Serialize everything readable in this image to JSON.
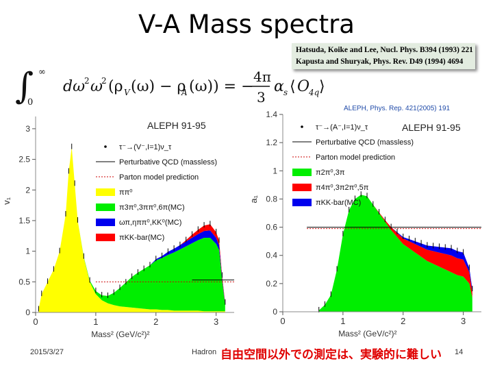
{
  "slide": {
    "title": "V-A Mass spectra",
    "references": [
      "Hatsuda, Koike and Lee, Nucl. Phys.  B394 (1993) 221",
      "Kapusta and Shuryak, Phys. Rev. D49 (1994) 4694"
    ],
    "formula_text": "∫₀^∞ dω² ω² (ρ_V(ω) − ρ_A(ω)) = −(4π/3) α_s ⟨O_4q⟩",
    "aleph_reference": "ALEPH, Phys. Rep. 421(2005) 191",
    "footer_date": "2015/3/27",
    "footer_label": "Hadron",
    "footer_note": "自由空間以外での測定は、実験的に難しい",
    "page_number": "14"
  },
  "chart_data": [
    {
      "type": "area",
      "title": "ALEPH 91-95",
      "xlabel": "Mass² (GeV/c²)²",
      "ylabel": "v₁",
      "xlim": [
        0,
        3.3
      ],
      "ylim": [
        0,
        3.2
      ],
      "xticks": [
        "0",
        "1",
        "2",
        "3"
      ],
      "yticks": [
        "0",
        "0.5",
        "1",
        "1.5",
        "2",
        "2.5",
        "3"
      ],
      "legend": [
        {
          "label": "τ⁻→(V⁻,I=1)ν_τ",
          "marker": "point"
        },
        {
          "label": "Perturbative QCD (massless)",
          "marker": "solid-line"
        },
        {
          "label": "Parton model prediction",
          "marker": "dashed-red-line"
        },
        {
          "label": "ππ⁰",
          "color": "#ffff00"
        },
        {
          "label": "π3π⁰,3ππ⁰,6π(MC)",
          "color": "#00ee00"
        },
        {
          "label": "ωπ,ηππ⁰,KK⁰(MC)",
          "color": "#0000ee"
        },
        {
          "label": "πKK-bar(MC)",
          "color": "#ff0000"
        }
      ],
      "x": [
        0.05,
        0.1,
        0.2,
        0.3,
        0.4,
        0.5,
        0.55,
        0.6,
        0.65,
        0.7,
        0.8,
        0.9,
        1.0,
        1.1,
        1.2,
        1.3,
        1.4,
        1.5,
        1.6,
        1.7,
        1.8,
        1.9,
        2.0,
        2.1,
        2.2,
        2.3,
        2.4,
        2.5,
        2.6,
        2.7,
        2.8,
        2.9,
        3.0,
        3.05,
        3.1,
        3.15
      ],
      "series": [
        {
          "name": "ππ⁰",
          "values": [
            0.05,
            0.3,
            0.5,
            0.7,
            1.0,
            1.6,
            2.3,
            2.7,
            2.1,
            1.5,
            0.9,
            0.5,
            0.3,
            0.2,
            0.15,
            0.12,
            0.1,
            0.09,
            0.08,
            0.07,
            0.06,
            0.05,
            0.05,
            0.04,
            0.04,
            0.03,
            0.03,
            0.03,
            0.03,
            0.03,
            0.02,
            0.02,
            0.02,
            0.02,
            0.02,
            0.02
          ]
        },
        {
          "name": "π3π⁰,3ππ⁰,6π(MC)",
          "values": [
            0,
            0,
            0,
            0,
            0,
            0,
            0,
            0,
            0,
            0,
            0.01,
            0.02,
            0.05,
            0.08,
            0.12,
            0.2,
            0.3,
            0.4,
            0.5,
            0.58,
            0.65,
            0.72,
            0.8,
            0.85,
            0.9,
            0.95,
            1.0,
            1.05,
            1.1,
            1.15,
            1.2,
            1.2,
            1.1,
            1.0,
            0.5,
            0.1
          ]
        },
        {
          "name": "ωπ,ηππ⁰,KK⁰(MC)",
          "values": [
            0,
            0,
            0,
            0,
            0,
            0,
            0,
            0,
            0,
            0,
            0,
            0,
            0,
            0,
            0,
            0,
            0,
            0,
            0,
            0,
            0,
            0,
            0.02,
            0.03,
            0.05,
            0.06,
            0.07,
            0.08,
            0.09,
            0.1,
            0.11,
            0.12,
            0.1,
            0.08,
            0.04,
            0.02
          ]
        },
        {
          "name": "πKK-bar(MC)",
          "values": [
            0,
            0,
            0,
            0,
            0,
            0,
            0,
            0,
            0,
            0,
            0,
            0,
            0,
            0,
            0,
            0,
            0,
            0,
            0,
            0,
            0,
            0,
            0,
            0,
            0,
            0,
            0,
            0.02,
            0.05,
            0.07,
            0.09,
            0.1,
            0.09,
            0.07,
            0.04,
            0.02
          ]
        }
      ],
      "reference_lines": [
        {
          "name": "Parton model prediction",
          "y": 0.5,
          "x_from": 1.0,
          "x_to": 3.3
        },
        {
          "name": "Perturbative QCD (massless)",
          "y": 0.53,
          "x_from": 2.6,
          "x_to": 3.3
        }
      ]
    },
    {
      "type": "area",
      "title": "ALEPH 91-95",
      "xlabel": "Mass² (GeV/c²)²",
      "ylabel": "a₁",
      "xlim": [
        0,
        3.3
      ],
      "ylim": [
        0,
        1.4
      ],
      "xticks": [
        "0",
        "1",
        "2",
        "3"
      ],
      "yticks": [
        "0",
        "0.2",
        "0.4",
        "0.6",
        "0.8",
        "1",
        "1.2",
        "1.4"
      ],
      "legend": [
        {
          "label": "τ⁻→(A⁻,I=1)ν_τ",
          "marker": "point"
        },
        {
          "label": "Perturbative QCD (massless)",
          "marker": "solid-line"
        },
        {
          "label": "Parton model prediction",
          "marker": "dashed-red-line"
        },
        {
          "label": "π2π⁰,3π",
          "color": "#00ee00"
        },
        {
          "label": "π4π⁰,3π2π⁰,5π",
          "color": "#ff0000"
        },
        {
          "label": "πKK-bar(MC)",
          "color": "#0000ee"
        }
      ],
      "x": [
        0.6,
        0.7,
        0.8,
        0.9,
        1.0,
        1.1,
        1.2,
        1.3,
        1.4,
        1.5,
        1.6,
        1.7,
        1.8,
        1.9,
        2.0,
        2.1,
        2.2,
        2.3,
        2.4,
        2.5,
        2.6,
        2.7,
        2.8,
        2.9,
        3.0,
        3.1,
        3.15
      ],
      "series": [
        {
          "name": "π2π⁰,3π",
          "values": [
            0.01,
            0.05,
            0.12,
            0.3,
            0.55,
            0.72,
            0.8,
            0.83,
            0.82,
            0.76,
            0.7,
            0.64,
            0.58,
            0.53,
            0.48,
            0.45,
            0.42,
            0.39,
            0.36,
            0.34,
            0.32,
            0.3,
            0.28,
            0.26,
            0.25,
            0.2,
            0.1
          ]
        },
        {
          "name": "π4π⁰,3π2π⁰,5π",
          "values": [
            0,
            0,
            0,
            0,
            0,
            0,
            0,
            0,
            0,
            0,
            0.005,
            0.01,
            0.02,
            0.03,
            0.04,
            0.05,
            0.06,
            0.07,
            0.08,
            0.09,
            0.1,
            0.11,
            0.12,
            0.12,
            0.12,
            0.08,
            0.04
          ]
        },
        {
          "name": "πKK-bar(MC)",
          "values": [
            0,
            0,
            0,
            0,
            0,
            0,
            0,
            0,
            0,
            0,
            0,
            0,
            0,
            0.005,
            0.01,
            0.015,
            0.02,
            0.025,
            0.03,
            0.035,
            0.04,
            0.045,
            0.05,
            0.05,
            0.05,
            0.03,
            0.02
          ]
        }
      ],
      "reference_lines": [
        {
          "name": "Perturbative QCD (massless)",
          "y": 0.6,
          "x_from": 0.4,
          "x_to": 3.3
        },
        {
          "name": "Parton model prediction",
          "y": 0.59,
          "x_from": 0.4,
          "x_to": 3.3
        }
      ]
    }
  ]
}
